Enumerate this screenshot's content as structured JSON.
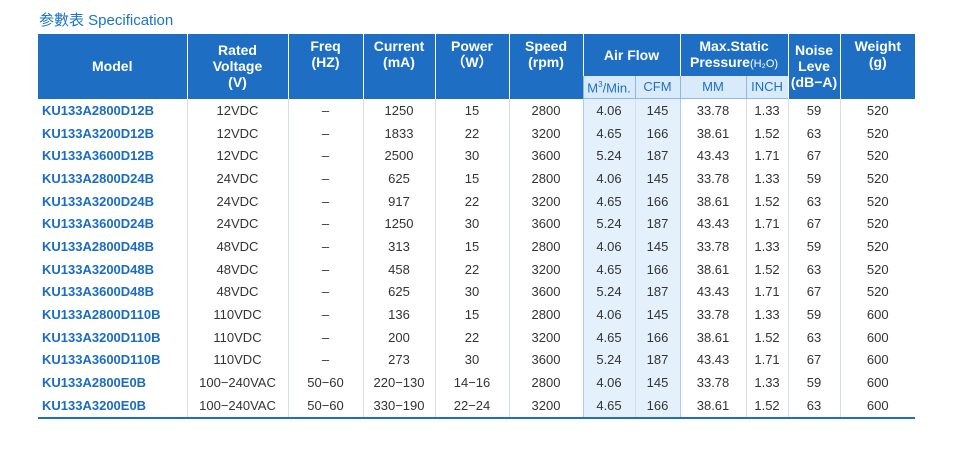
{
  "title": "参數表 Specification",
  "header": {
    "model": "Model",
    "voltage": [
      "Rated",
      "Voltage",
      "(V)"
    ],
    "freq": [
      "Freq",
      "(HZ)"
    ],
    "current": [
      "Current",
      "(mA)"
    ],
    "power": [
      "Power",
      "（W）"
    ],
    "speed": [
      "Speed",
      "(rpm)"
    ],
    "airflow": "Air Flow",
    "pressure_line1": "Max.Static",
    "pressure_line2": "Pressure",
    "pressure_unit": "(H₂O)",
    "noise": [
      "Noise",
      "Leve",
      "(dB−A)"
    ],
    "weight": [
      "Weight",
      "(g)"
    ],
    "sub_m3_base": "M",
    "sub_m3_sup": "3",
    "sub_m3_tail": "/Min.",
    "sub_cfm": "CFM",
    "sub_mm": "MM",
    "sub_inch": "INCH"
  },
  "rows": [
    [
      "KU133A2800D12B",
      "12VDC",
      "–",
      "1250",
      "15",
      "2800",
      "4.06",
      "145",
      "33.78",
      "1.33",
      "59",
      "520"
    ],
    [
      "KU133A3200D12B",
      "12VDC",
      "–",
      "1833",
      "22",
      "3200",
      "4.65",
      "166",
      "38.61",
      "1.52",
      "63",
      "520"
    ],
    [
      "KU133A3600D12B",
      "12VDC",
      "–",
      "2500",
      "30",
      "3600",
      "5.24",
      "187",
      "43.43",
      "1.71",
      "67",
      "520"
    ],
    [
      "KU133A2800D24B",
      "24VDC",
      "–",
      "625",
      "15",
      "2800",
      "4.06",
      "145",
      "33.78",
      "1.33",
      "59",
      "520"
    ],
    [
      "KU133A3200D24B",
      "24VDC",
      "–",
      "917",
      "22",
      "3200",
      "4.65",
      "166",
      "38.61",
      "1.52",
      "63",
      "520"
    ],
    [
      "KU133A3600D24B",
      "24VDC",
      "–",
      "1250",
      "30",
      "3600",
      "5.24",
      "187",
      "43.43",
      "1.71",
      "67",
      "520"
    ],
    [
      "KU133A2800D48B",
      "48VDC",
      "–",
      "313",
      "15",
      "2800",
      "4.06",
      "145",
      "33.78",
      "1.33",
      "59",
      "520"
    ],
    [
      "KU133A3200D48B",
      "48VDC",
      "–",
      "458",
      "22",
      "3200",
      "4.65",
      "166",
      "38.61",
      "1.52",
      "63",
      "520"
    ],
    [
      "KU133A3600D48B",
      "48VDC",
      "–",
      "625",
      "30",
      "3600",
      "5.24",
      "187",
      "43.43",
      "1.71",
      "67",
      "520"
    ],
    [
      "KU133A2800D110B",
      "110VDC",
      "–",
      "136",
      "15",
      "2800",
      "4.06",
      "145",
      "33.78",
      "1.33",
      "59",
      "600"
    ],
    [
      "KU133A3200D110B",
      "110VDC",
      "–",
      "200",
      "22",
      "3200",
      "4.65",
      "166",
      "38.61",
      "1.52",
      "63",
      "600"
    ],
    [
      "KU133A3600D110B",
      "110VDC",
      "–",
      "273",
      "30",
      "3600",
      "5.24",
      "187",
      "43.43",
      "1.71",
      "67",
      "600"
    ],
    [
      "KU133A2800E0B",
      "100−240VAC",
      "50−60",
      "220−130",
      "14−16",
      "2800",
      "4.06",
      "145",
      "33.78",
      "1.33",
      "59",
      "600"
    ],
    [
      "KU133A3200E0B",
      "100−240VAC",
      "50−60",
      "330−190",
      "22−24",
      "3200",
      "4.65",
      "166",
      "38.61",
      "1.52",
      "63",
      "600"
    ]
  ]
}
